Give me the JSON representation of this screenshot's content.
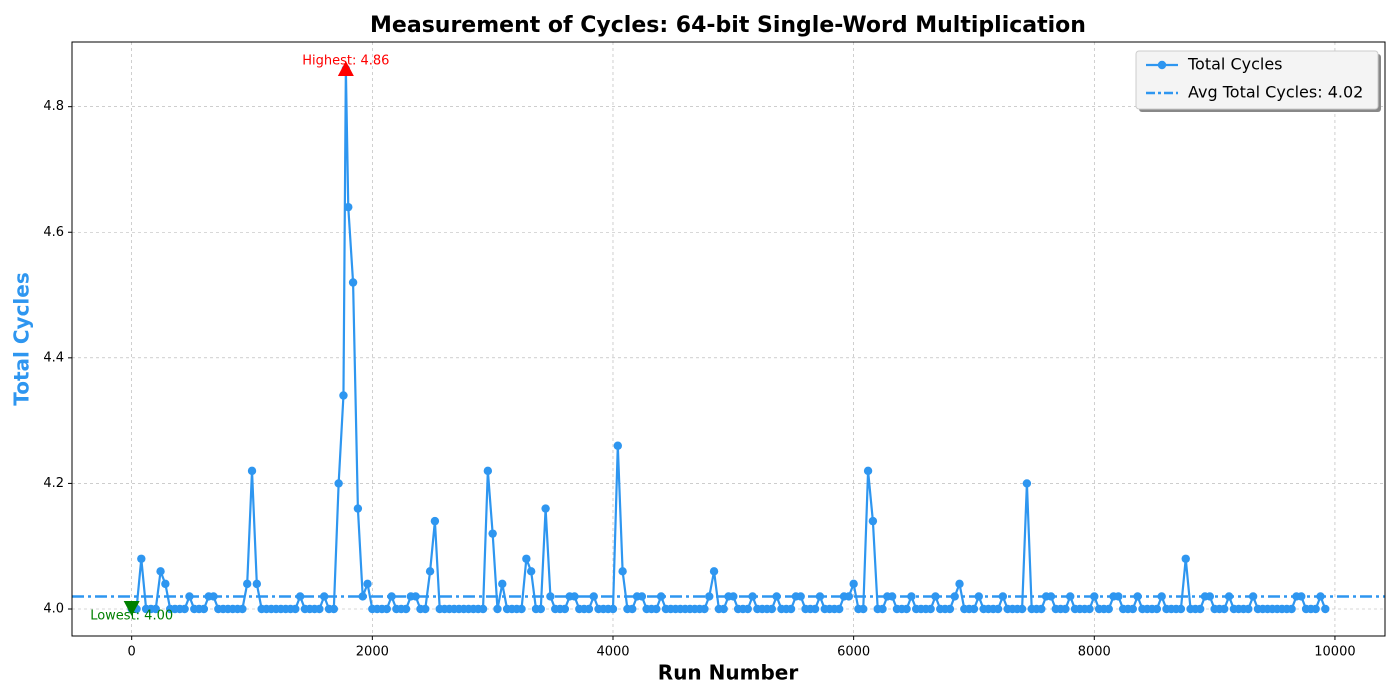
{
  "chart_data": {
    "type": "line",
    "title": "Measurement of Cycles: 64-bit Single-Word Multiplication",
    "x_label": "Run Number",
    "y_label": "Total Cycles",
    "x": [
      0,
      40,
      80,
      120,
      160,
      200,
      240,
      280,
      320,
      360,
      400,
      440,
      480,
      520,
      560,
      600,
      640,
      680,
      720,
      760,
      800,
      840,
      880,
      920,
      960,
      1000,
      1040,
      1080,
      1120,
      1160,
      1200,
      1240,
      1280,
      1320,
      1360,
      1400,
      1440,
      1480,
      1520,
      1560,
      1600,
      1640,
      1680,
      1720,
      1760,
      1780,
      1800,
      1840,
      1880,
      1920,
      1960,
      2000,
      2040,
      2080,
      2120,
      2160,
      2200,
      2240,
      2280,
      2320,
      2360,
      2400,
      2440,
      2480,
      2520,
      2560,
      2600,
      2640,
      2680,
      2720,
      2760,
      2800,
      2840,
      2880,
      2920,
      2960,
      3000,
      3040,
      3080,
      3120,
      3160,
      3200,
      3240,
      3280,
      3320,
      3360,
      3400,
      3440,
      3480,
      3520,
      3560,
      3600,
      3640,
      3680,
      3720,
      3760,
      3800,
      3840,
      3880,
      3920,
      3960,
      4000,
      4040,
      4080,
      4120,
      4160,
      4200,
      4240,
      4280,
      4320,
      4360,
      4400,
      4440,
      4480,
      4520,
      4560,
      4600,
      4640,
      4680,
      4720,
      4760,
      4800,
      4840,
      4880,
      4920,
      4960,
      5000,
      5040,
      5080,
      5120,
      5160,
      5200,
      5240,
      5280,
      5320,
      5360,
      5400,
      5440,
      5480,
      5520,
      5560,
      5600,
      5640,
      5680,
      5720,
      5760,
      5800,
      5840,
      5880,
      5920,
      5960,
      6000,
      6040,
      6080,
      6120,
      6160,
      6200,
      6240,
      6280,
      6320,
      6360,
      6400,
      6440,
      6480,
      6520,
      6560,
      6600,
      6640,
      6680,
      6720,
      6760,
      6800,
      6840,
      6880,
      6920,
      6960,
      7000,
      7040,
      7080,
      7120,
      7160,
      7200,
      7240,
      7280,
      7320,
      7360,
      7400,
      7440,
      7480,
      7520,
      7560,
      7600,
      7640,
      7680,
      7720,
      7760,
      7800,
      7840,
      7880,
      7920,
      7960,
      8000,
      8040,
      8080,
      8120,
      8160,
      8200,
      8240,
      8280,
      8320,
      8360,
      8400,
      8440,
      8480,
      8520,
      8560,
      8600,
      8640,
      8680,
      8720,
      8760,
      8800,
      8840,
      8880,
      8920,
      8960,
      9000,
      9040,
      9080,
      9120,
      9160,
      9200,
      9240,
      9280,
      9320,
      9360,
      9400,
      9440,
      9480,
      9520,
      9560,
      9600,
      9640,
      9680,
      9720,
      9760,
      9800,
      9840,
      9880,
      9920
    ],
    "series": [
      {
        "name": "Total Cycles",
        "color": "#2e96f0",
        "values": [
          4.0,
          4.0,
          4.08,
          4.0,
          4.0,
          4.0,
          4.06,
          4.04,
          4.0,
          4.0,
          4.0,
          4.0,
          4.02,
          4.0,
          4.0,
          4.0,
          4.02,
          4.02,
          4.0,
          4.0,
          4.0,
          4.0,
          4.0,
          4.0,
          4.04,
          4.22,
          4.04,
          4.0,
          4.0,
          4.0,
          4.0,
          4.0,
          4.0,
          4.0,
          4.0,
          4.02,
          4.0,
          4.0,
          4.0,
          4.0,
          4.02,
          4.0,
          4.0,
          4.2,
          4.34,
          4.86,
          4.64,
          4.52,
          4.16,
          4.02,
          4.04,
          4.0,
          4.0,
          4.0,
          4.0,
          4.02,
          4.0,
          4.0,
          4.0,
          4.02,
          4.02,
          4.0,
          4.0,
          4.06,
          4.14,
          4.0,
          4.0,
          4.0,
          4.0,
          4.0,
          4.0,
          4.0,
          4.0,
          4.0,
          4.0,
          4.22,
          4.12,
          4.0,
          4.04,
          4.0,
          4.0,
          4.0,
          4.0,
          4.08,
          4.06,
          4.0,
          4.0,
          4.16,
          4.02,
          4.0,
          4.0,
          4.0,
          4.02,
          4.02,
          4.0,
          4.0,
          4.0,
          4.02,
          4.0,
          4.0,
          4.0,
          4.0,
          4.26,
          4.06,
          4.0,
          4.0,
          4.02,
          4.02,
          4.0,
          4.0,
          4.0,
          4.02,
          4.0,
          4.0,
          4.0,
          4.0,
          4.0,
          4.0,
          4.0,
          4.0,
          4.0,
          4.02,
          4.06,
          4.0,
          4.0,
          4.02,
          4.02,
          4.0,
          4.0,
          4.0,
          4.02,
          4.0,
          4.0,
          4.0,
          4.0,
          4.02,
          4.0,
          4.0,
          4.0,
          4.02,
          4.02,
          4.0,
          4.0,
          4.0,
          4.02,
          4.0,
          4.0,
          4.0,
          4.0,
          4.02,
          4.02,
          4.04,
          4.0,
          4.0,
          4.22,
          4.14,
          4.0,
          4.0,
          4.02,
          4.02,
          4.0,
          4.0,
          4.0,
          4.02,
          4.0,
          4.0,
          4.0,
          4.0,
          4.02,
          4.0,
          4.0,
          4.0,
          4.02,
          4.04,
          4.0,
          4.0,
          4.0,
          4.02,
          4.0,
          4.0,
          4.0,
          4.0,
          4.02,
          4.0,
          4.0,
          4.0,
          4.0,
          4.2,
          4.0,
          4.0,
          4.0,
          4.02,
          4.02,
          4.0,
          4.0,
          4.0,
          4.02,
          4.0,
          4.0,
          4.0,
          4.0,
          4.02,
          4.0,
          4.0,
          4.0,
          4.02,
          4.02,
          4.0,
          4.0,
          4.0,
          4.02,
          4.0,
          4.0,
          4.0,
          4.0,
          4.02,
          4.0,
          4.0,
          4.0,
          4.0,
          4.08,
          4.0,
          4.0,
          4.0,
          4.02,
          4.02,
          4.0,
          4.0,
          4.0,
          4.02,
          4.0,
          4.0,
          4.0,
          4.0,
          4.02,
          4.0,
          4.0,
          4.0,
          4.0,
          4.0,
          4.0,
          4.0,
          4.0,
          4.02,
          4.02,
          4.0,
          4.0,
          4.0,
          4.02,
          4.0
        ]
      }
    ],
    "average": {
      "name": "Avg Total Cycles: 4.02",
      "value": 4.02,
      "color": "#2e96f0"
    },
    "annotations": [
      {
        "text": "Highest: 4.86",
        "x": 1780,
        "y": 4.86,
        "color": "#ff0000"
      },
      {
        "text": "Lowest: 4.00",
        "x": 0,
        "y": 4.0,
        "color": "#008000"
      }
    ],
    "xlim": [
      -496,
      10416
    ],
    "xticks": [
      0,
      2000,
      4000,
      6000,
      8000,
      10000
    ],
    "ylim": [
      3.957,
      4.903
    ],
    "yticks": [
      {
        "value": 4,
        "label": "4.0"
      },
      4.2,
      4.4,
      4.6,
      4.8
    ],
    "grid": true,
    "legend": "upper right"
  }
}
